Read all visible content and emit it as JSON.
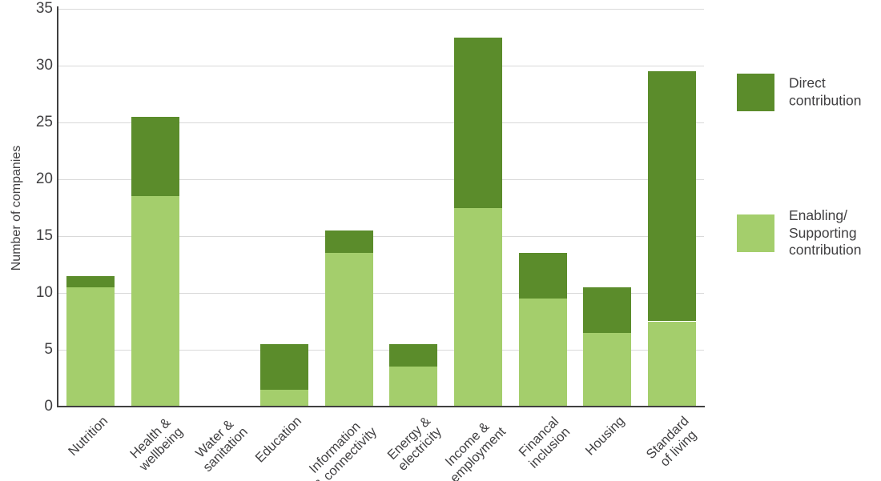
{
  "chart_data": {
    "type": "bar",
    "stacked": true,
    "title": "",
    "xlabel": "",
    "ylabel": "Number of companies",
    "ylim": [
      0,
      35
    ],
    "yticks": [
      0,
      5,
      10,
      15,
      20,
      25,
      30,
      35
    ],
    "grid": "horizontal",
    "legend_position": "right",
    "categories": [
      "Nutrition",
      "Health &\nwellbeing",
      "Water &\nsanitation",
      "Education",
      "Information\n& connectivity",
      "Energy &\nelectricity",
      "Income &\nemployment",
      "Financal\ninclusion",
      "Housing",
      "Standard\nof living"
    ],
    "series": [
      {
        "name": "Enabling/Supporting contribution",
        "color": "#a4ce6c",
        "values": [
          10.5,
          18.5,
          0,
          1.5,
          13.5,
          3.5,
          17.5,
          9.5,
          6.5,
          7.5
        ]
      },
      {
        "name": "Direct contribution",
        "color": "#5b8c2b",
        "values": [
          1,
          7,
          0,
          4,
          2,
          2,
          15,
          4,
          4,
          22
        ]
      }
    ]
  },
  "legend": {
    "items": [
      {
        "label": "Direct\ncontribution",
        "series": "Direct contribution",
        "color": "#5b8c2b"
      },
      {
        "label": "Enabling/\nSupporting\ncontribution",
        "series": "Enabling/Supporting contribution",
        "color": "#a4ce6c"
      }
    ]
  },
  "colors": {
    "direct": "#5b8c2b",
    "enabling": "#a4ce6c",
    "gridline": "#d9d9d9",
    "axis": "#404040",
    "text": "#414042",
    "background": "#ffffff"
  }
}
